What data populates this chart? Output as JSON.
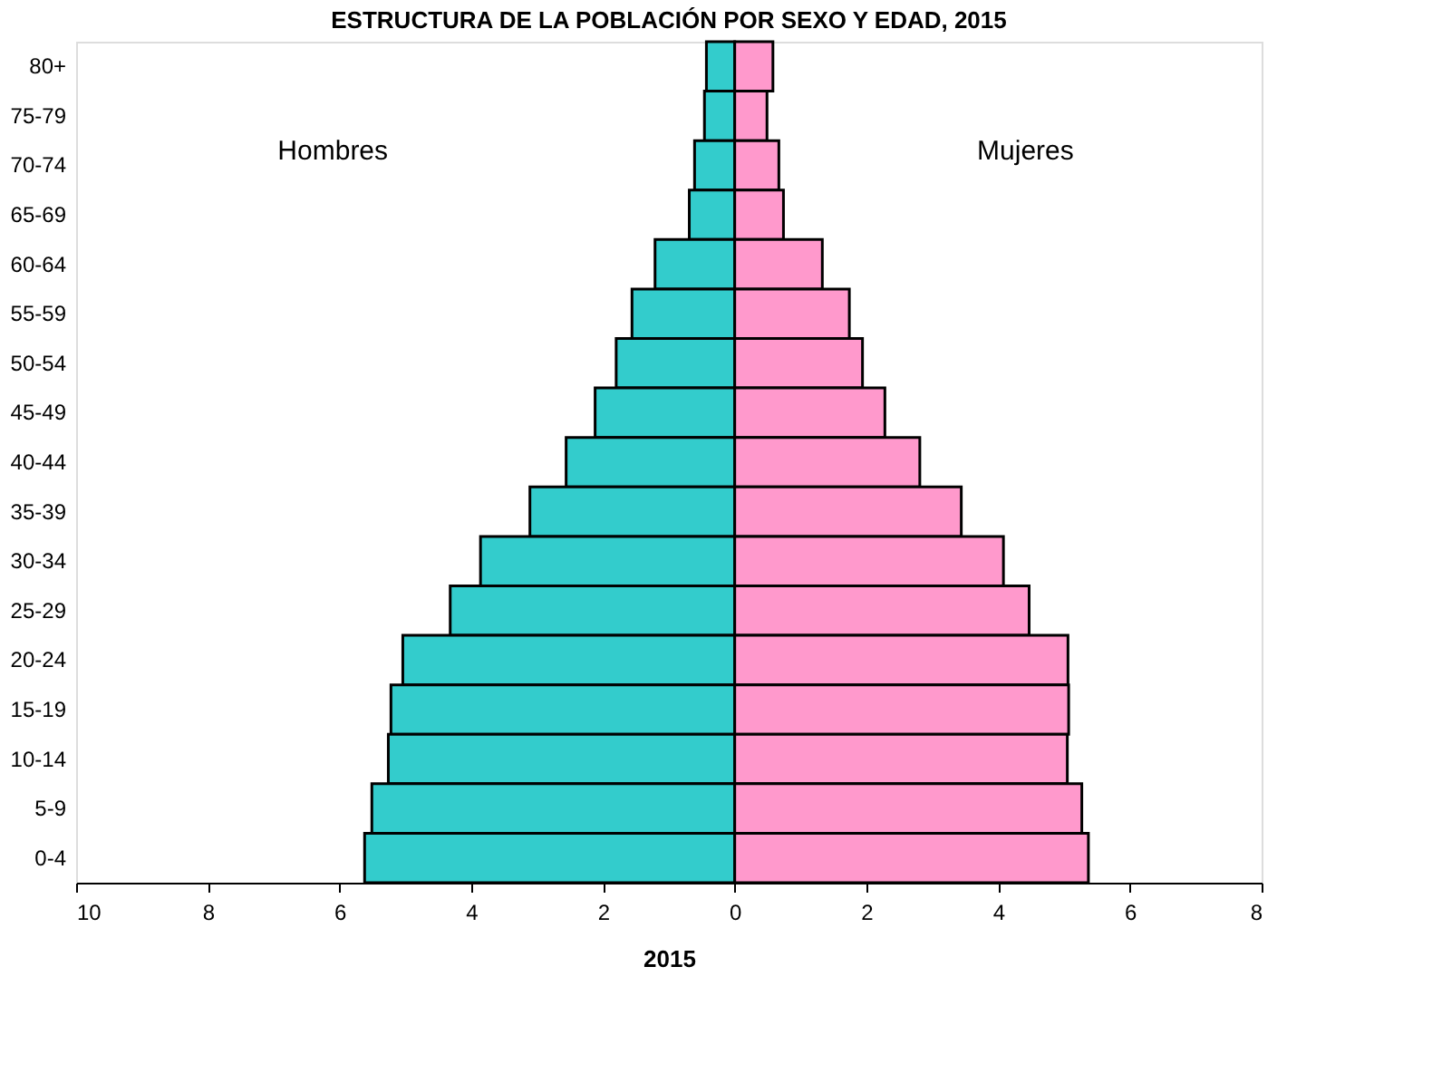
{
  "chart_data": {
    "type": "bar",
    "orientation": "horizontal",
    "title": "ESTRUCTURA DE LA POBLACIÓN POR SEXO Y EDAD, 2015",
    "xlabel": "2015",
    "categories": [
      "80+",
      "75-79",
      "70-74",
      "65-69",
      "60-64",
      "55-59",
      "50-54",
      "45-49",
      "40-44",
      "35-39",
      "30-34",
      "25-29",
      "20-24",
      "15-19",
      "10-14",
      "5-9",
      "0-4"
    ],
    "series": [
      {
        "color": "#33cccc",
        "values": [
          -0.43,
          -0.46,
          -0.61,
          -0.69,
          -1.21,
          -1.56,
          -1.8,
          -2.12,
          -2.56,
          -3.11,
          -3.86,
          -4.32,
          -5.04,
          -5.22,
          -5.26,
          -5.51,
          -5.62
        ]
      },
      {
        "color": "#ff99cc",
        "values": [
          0.58,
          0.49,
          0.67,
          0.74,
          1.33,
          1.74,
          1.94,
          2.28,
          2.81,
          3.44,
          4.08,
          4.47,
          5.06,
          5.07,
          5.05,
          5.27,
          5.37
        ]
      }
    ],
    "xlim": [
      -10,
      8
    ],
    "xticks": [
      {
        "value": -10,
        "label": "10"
      },
      {
        "value": -8,
        "label": "8"
      },
      {
        "value": -6,
        "label": "6"
      },
      {
        "value": -4,
        "label": "4"
      },
      {
        "value": -2,
        "label": "2"
      },
      0,
      2,
      4,
      6,
      8
    ],
    "annotations": [
      "Hombres",
      "Mujeres"
    ],
    "stacked": true,
    "grid": false,
    "legend": false
  }
}
